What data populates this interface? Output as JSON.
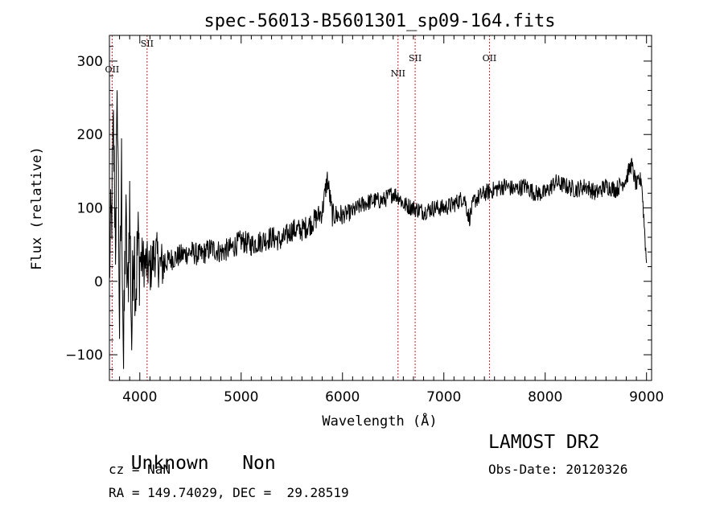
{
  "chart_data": {
    "type": "line",
    "title": "spec-56013-B5601301_sp09-164.fits",
    "xlabel": "Wavelength (Å)",
    "ylabel": "Flux (relative)",
    "xlim": [
      3700,
      9050
    ],
    "ylim": [
      -135,
      335
    ],
    "x_ticks": [
      4000,
      5000,
      6000,
      7000,
      8000,
      9000
    ],
    "y_ticks": [
      -100,
      0,
      100,
      200,
      300
    ],
    "x_minor_step": 100,
    "y_minor_step": 20,
    "line_color": "#000000",
    "marker_color": "#cc2222",
    "series": [
      {
        "x": [
          3700,
          3720,
          3740,
          3760,
          3780,
          3800,
          3820,
          3840,
          3860,
          3880,
          3900,
          3920,
          3940,
          3960,
          3980,
          4000,
          4050,
          4100,
          4150,
          4200,
          4300,
          4400,
          4500,
          4600,
          4700,
          4800,
          4900,
          5000,
          5100,
          5200,
          5300,
          5400,
          5500,
          5600,
          5700,
          5800,
          5850,
          5900,
          6000,
          6100,
          6200,
          6300,
          6400,
          6500,
          6560,
          6600,
          6700,
          6800,
          6900,
          7000,
          7100,
          7200,
          7250,
          7300,
          7400,
          7500,
          7600,
          7700,
          7800,
          7900,
          8000,
          8100,
          8200,
          8300,
          8400,
          8500,
          8600,
          8700,
          8800,
          8850,
          8900,
          8950,
          9000
        ],
        "y": [
          20,
          80,
          200,
          60,
          250,
          -60,
          150,
          -120,
          90,
          -30,
          110,
          -80,
          70,
          -10,
          50,
          30,
          25,
          15,
          40,
          20,
          30,
          35,
          40,
          35,
          45,
          40,
          45,
          55,
          50,
          55,
          60,
          55,
          70,
          70,
          80,
          95,
          140,
          90,
          90,
          95,
          105,
          110,
          110,
          120,
          115,
          105,
          100,
          95,
          100,
          100,
          105,
          115,
          85,
          110,
          120,
          125,
          130,
          125,
          130,
          120,
          120,
          135,
          130,
          125,
          130,
          120,
          130,
          125,
          140,
          160,
          130,
          140,
          25
        ]
      }
    ],
    "lines": [
      {
        "label": "OII",
        "x": 3727
      },
      {
        "label": "SII",
        "x": 4072
      },
      {
        "label": "NII",
        "x": 6548
      },
      {
        "label": "SII",
        "x": 6717
      },
      {
        "label": "OII",
        "x": 7450
      }
    ]
  },
  "info": {
    "class": "Unknown",
    "subclass": "Non",
    "cz": "cz = NaN",
    "coords": "RA = 149.74029, DEC =  29.28519",
    "survey": "LAMOST DR2",
    "obs_date": "Obs-Date: 20120326"
  }
}
